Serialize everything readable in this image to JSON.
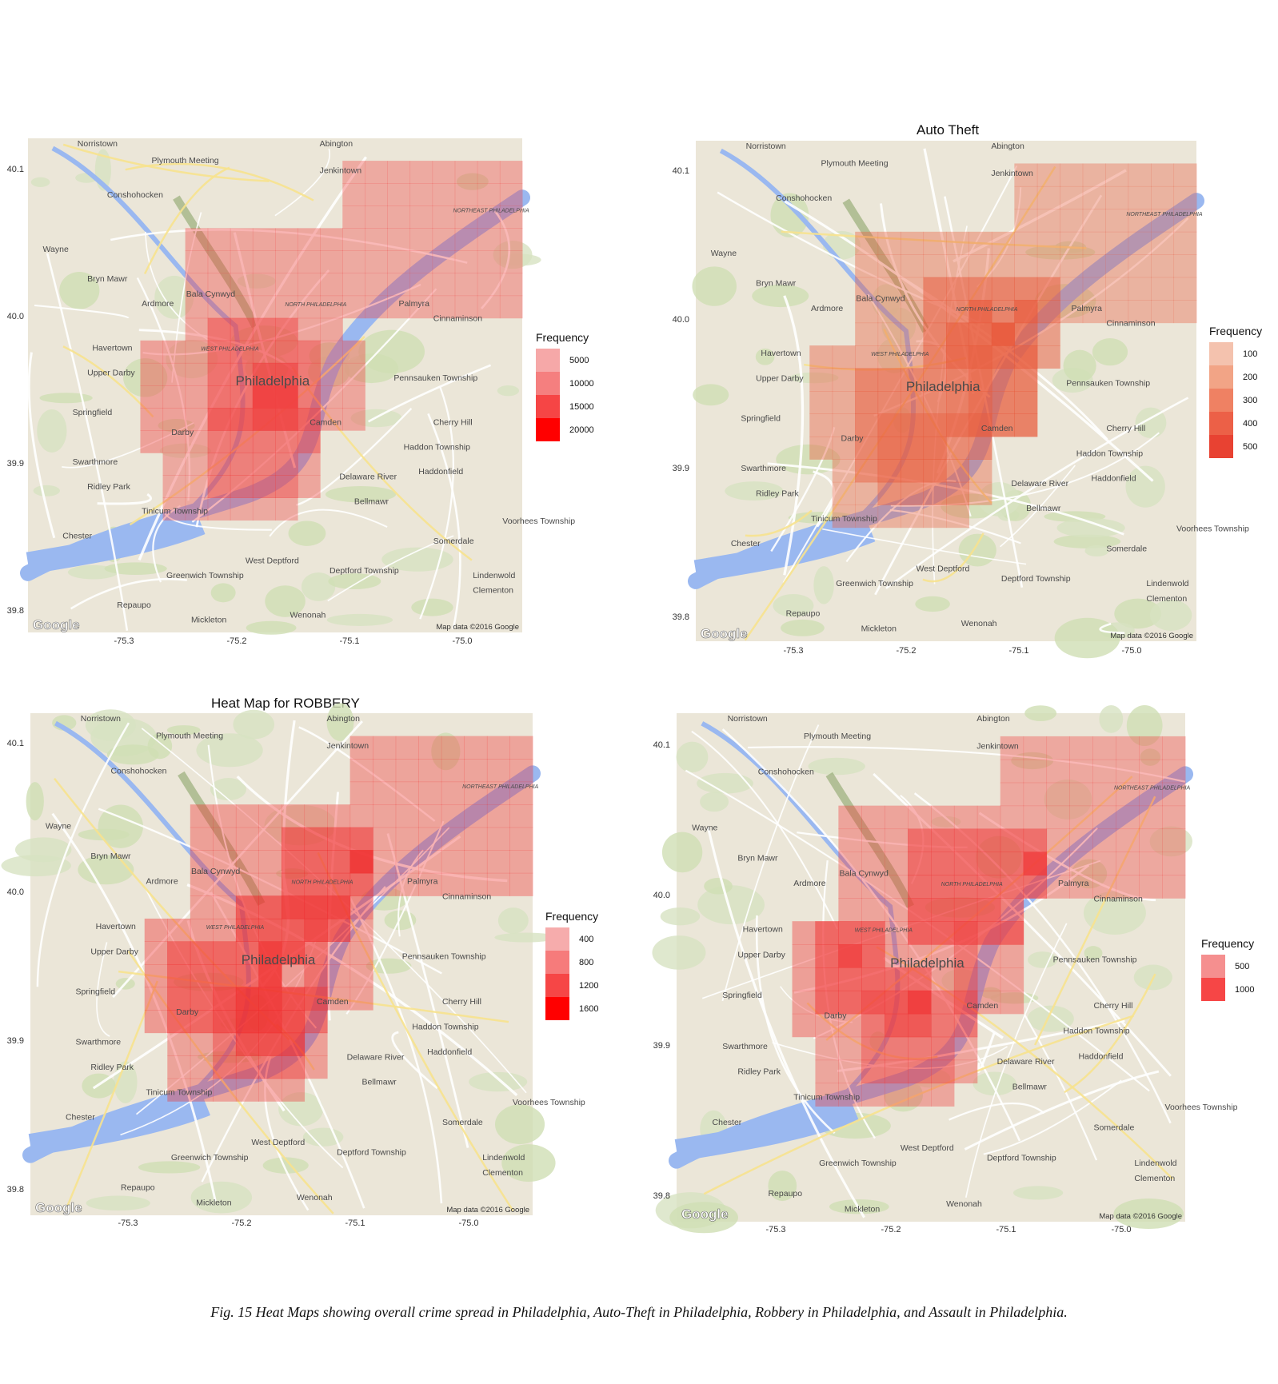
{
  "caption": "Fig. 15 Heat Maps showing overall crime spread in Philadelphia, Auto-Theft in Philadelphia, Robbery in Philadelphia, and Assault in Philadelphia.",
  "map_labels": {
    "city": "Philadelphia",
    "places": [
      "Norristown",
      "Abington",
      "Plymouth Meeting",
      "Jenkintown",
      "Conshohocken",
      "Wayne",
      "Bryn Mawr",
      "Bala Cynwyd",
      "Ardmore",
      "Havertown",
      "Upper Darby",
      "Springfield",
      "Darby",
      "Swarthmore",
      "Ridley Park",
      "Tinicum Township",
      "Chester",
      "Greenwich Township",
      "Repaupo",
      "Mickleton",
      "Wenonah",
      "West Deptford",
      "Deptford Township",
      "Somerdale",
      "Lindenwold",
      "Clementon",
      "Voorhees Township",
      "Bellmawr",
      "Haddonfield",
      "Haddon Township",
      "Cherry Hill",
      "Pennsauken Township",
      "Camden",
      "Cinnaminson",
      "Palmyra",
      "NORTHEAST PHILADELPHIA",
      "NORTH PHILADELPHIA",
      "WEST PHILADELPHIA",
      "Delaware River"
    ],
    "google_logo": "Google",
    "attribution": "Map data ©2016 Google"
  },
  "panels": [
    {
      "title": "",
      "x_ticks": [
        "-75.3",
        "-75.2",
        "-75.1",
        "-75.0"
      ],
      "y_ticks": [
        "40.1",
        "40.0",
        "39.9",
        "39.8"
      ],
      "legend_title": "Frequency",
      "legend": [
        {
          "label": "5000",
          "color": "#f6a8a8"
        },
        {
          "label": "10000",
          "color": "#f57f7f"
        },
        {
          "label": "15000",
          "color": "#f64545"
        },
        {
          "label": "20000",
          "color": "#ff0000"
        }
      ]
    },
    {
      "title": "Auto Theft",
      "x_ticks": [
        "-75.3",
        "-75.2",
        "-75.1",
        "-75.0"
      ],
      "y_ticks": [
        "40.1",
        "40.0",
        "39.9",
        "39.8"
      ],
      "legend_title": "Frequency",
      "legend": [
        {
          "label": "100",
          "color": "#f4c2ae"
        },
        {
          "label": "200",
          "color": "#f2a486"
        },
        {
          "label": "300",
          "color": "#ef8163"
        },
        {
          "label": "400",
          "color": "#ec6047"
        },
        {
          "label": "500",
          "color": "#e84232"
        }
      ]
    },
    {
      "title": "Heat Map for ROBBERY",
      "x_ticks": [
        "-75.3",
        "-75.2",
        "-75.1",
        "-75.0"
      ],
      "y_ticks": [
        "40.1",
        "40.0",
        "39.9",
        "39.8"
      ],
      "legend_title": "Frequency",
      "legend": [
        {
          "label": "400",
          "color": "#f6acac"
        },
        {
          "label": "800",
          "color": "#f67b7b"
        },
        {
          "label": "1200",
          "color": "#f64646"
        },
        {
          "label": "1600",
          "color": "#ff0000"
        }
      ]
    },
    {
      "title": "",
      "x_ticks": [
        "-75.3",
        "-75.2",
        "-75.1",
        "-75.0"
      ],
      "y_ticks": [
        "40.1",
        "40.0",
        "39.9",
        "39.8"
      ],
      "legend_title": "Frequency",
      "legend": [
        {
          "label": "500",
          "color": "#f58f8f"
        },
        {
          "label": "1000",
          "color": "#f64646"
        }
      ]
    }
  ]
}
